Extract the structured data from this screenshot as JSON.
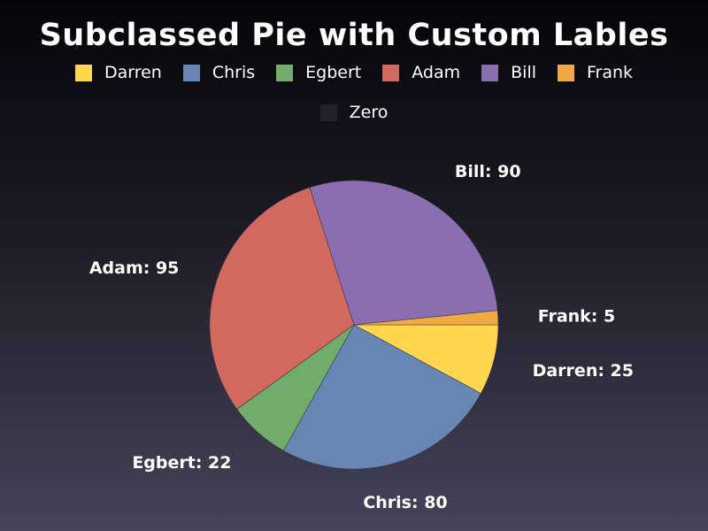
{
  "chart_data": {
    "type": "pie",
    "title": "Subclassed Pie with Custom Lables",
    "legend_position": "top",
    "series": [
      {
        "name": "Darren",
        "value": 25,
        "label": "Darren: 25",
        "color": "#ffd64d"
      },
      {
        "name": "Chris",
        "value": 80,
        "label": "Chris: 80",
        "color": "#6886b4"
      },
      {
        "name": "Egbert",
        "value": 22,
        "label": "Egbert: 22",
        "color": "#72ac6d"
      },
      {
        "name": "Adam",
        "value": 95,
        "label": "Adam: 95",
        "color": "#d1695e"
      },
      {
        "name": "Bill",
        "value": 90,
        "label": "Bill: 90",
        "color": "#8a6eaf"
      },
      {
        "name": "Frank",
        "value": 5,
        "label": "Frank: 5",
        "color": "#efaa43"
      },
      {
        "name": "Zero",
        "value": 0,
        "label": "",
        "color": "#222226"
      }
    ]
  }
}
